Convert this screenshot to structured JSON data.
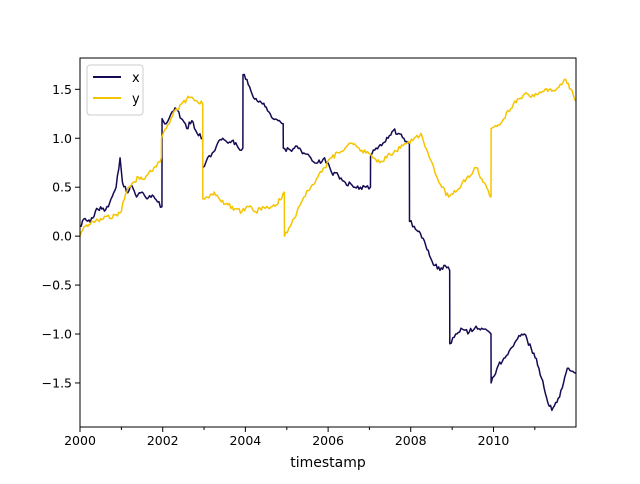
{
  "chart_data": {
    "type": "line",
    "title": "",
    "xlabel": "timestamp",
    "ylabel": "",
    "xlim": [
      "2000-01-01",
      "2011-12-31"
    ],
    "ylim": [
      -1.95,
      1.82
    ],
    "xticks": [
      {
        "date": "2000-01-01",
        "label": "2000"
      },
      {
        "date": "2002-01-01",
        "label": "2002"
      },
      {
        "date": "2004-01-01",
        "label": "2004"
      },
      {
        "date": "2006-01-01",
        "label": "2006"
      },
      {
        "date": "2008-01-01",
        "label": "2008"
      },
      {
        "date": "2010-01-01",
        "label": "2010"
      }
    ],
    "xminor_ticks": [
      "2001-01-01",
      "2003-01-01",
      "2005-01-01",
      "2007-01-01",
      "2009-01-01",
      "2011-01-01"
    ],
    "yticks": [
      {
        "value": 1.5,
        "label": "1.5"
      },
      {
        "value": 1.0,
        "label": "1.0"
      },
      {
        "value": 0.5,
        "label": "0.5"
      },
      {
        "value": 0.0,
        "label": "0.0"
      },
      {
        "value": -0.5,
        "label": "−0.5"
      },
      {
        "value": -1.0,
        "label": "−1.0"
      },
      {
        "value": -1.5,
        "label": "−1.5"
      }
    ],
    "grid": false,
    "legend": "upper-left",
    "series": [
      {
        "name": "x",
        "color": "#140b53",
        "points": [
          [
            "2000-01-01",
            0.1
          ],
          [
            "2000-02-15",
            0.18
          ],
          [
            "2000-04-01",
            0.14
          ],
          [
            "2000-05-15",
            0.25
          ],
          [
            "2000-07-01",
            0.3
          ],
          [
            "2000-08-15",
            0.27
          ],
          [
            "2000-10-01",
            0.38
          ],
          [
            "2000-11-15",
            0.5
          ],
          [
            "2000-12-20",
            0.8
          ],
          [
            "2001-01-10",
            0.55
          ],
          [
            "2001-02-15",
            0.45
          ],
          [
            "2001-04-01",
            0.52
          ],
          [
            "2001-05-15",
            0.4
          ],
          [
            "2001-07-01",
            0.45
          ],
          [
            "2001-08-15",
            0.38
          ],
          [
            "2001-10-01",
            0.42
          ],
          [
            "2001-11-15",
            0.35
          ],
          [
            "2001-12-25",
            0.3
          ],
          [
            "2001-12-26",
            1.2
          ],
          [
            "2002-02-01",
            1.15
          ],
          [
            "2002-03-15",
            1.25
          ],
          [
            "2002-05-01",
            1.3
          ],
          [
            "2002-06-15",
            1.2
          ],
          [
            "2002-08-01",
            1.1
          ],
          [
            "2002-09-15",
            1.18
          ],
          [
            "2002-11-01",
            1.05
          ],
          [
            "2002-12-20",
            1.0
          ],
          [
            "2002-12-21",
            0.7
          ],
          [
            "2003-02-01",
            0.8
          ],
          [
            "2003-03-15",
            0.85
          ],
          [
            "2003-05-01",
            0.95
          ],
          [
            "2003-06-15",
            1.0
          ],
          [
            "2003-08-01",
            0.95
          ],
          [
            "2003-09-15",
            0.98
          ],
          [
            "2003-11-01",
            0.9
          ],
          [
            "2003-12-10",
            0.9
          ],
          [
            "2003-12-11",
            1.65
          ],
          [
            "2004-01-15",
            1.6
          ],
          [
            "2004-03-01",
            1.45
          ],
          [
            "2004-04-15",
            1.38
          ],
          [
            "2004-06-01",
            1.35
          ],
          [
            "2004-07-15",
            1.28
          ],
          [
            "2004-09-01",
            1.2
          ],
          [
            "2004-10-15",
            1.18
          ],
          [
            "2004-11-30",
            1.15
          ],
          [
            "2004-12-01",
            0.9
          ],
          [
            "2005-02-01",
            0.88
          ],
          [
            "2005-04-01",
            0.92
          ],
          [
            "2005-06-01",
            0.85
          ],
          [
            "2005-08-01",
            0.8
          ],
          [
            "2005-10-01",
            0.75
          ],
          [
            "2005-12-01",
            0.8
          ],
          [
            "2006-02-01",
            0.65
          ],
          [
            "2006-04-01",
            0.62
          ],
          [
            "2006-06-01",
            0.55
          ],
          [
            "2006-08-01",
            0.52
          ],
          [
            "2006-10-01",
            0.48
          ],
          [
            "2006-12-01",
            0.5
          ],
          [
            "2007-01-10",
            0.5
          ],
          [
            "2007-01-11",
            0.82
          ],
          [
            "2007-03-01",
            0.9
          ],
          [
            "2007-05-01",
            0.95
          ],
          [
            "2007-06-15",
            1.0
          ],
          [
            "2007-08-01",
            1.08
          ],
          [
            "2007-09-15",
            1.05
          ],
          [
            "2007-11-01",
            1.0
          ],
          [
            "2007-12-20",
            0.95
          ],
          [
            "2007-12-21",
            0.15
          ],
          [
            "2008-02-01",
            0.1
          ],
          [
            "2008-03-15",
            0.05
          ],
          [
            "2008-05-01",
            -0.05
          ],
          [
            "2008-06-15",
            -0.2
          ],
          [
            "2008-08-01",
            -0.3
          ],
          [
            "2008-09-15",
            -0.35
          ],
          [
            "2008-11-01",
            -0.3
          ],
          [
            "2008-12-10",
            -0.35
          ],
          [
            "2008-12-11",
            -1.1
          ],
          [
            "2009-02-01",
            -1.0
          ],
          [
            "2009-04-01",
            -0.95
          ],
          [
            "2009-06-01",
            -0.98
          ],
          [
            "2009-08-01",
            -0.92
          ],
          [
            "2009-10-01",
            -0.95
          ],
          [
            "2009-12-10",
            -1.0
          ],
          [
            "2009-12-11",
            -1.5
          ],
          [
            "2010-02-01",
            -1.35
          ],
          [
            "2010-04-01",
            -1.25
          ],
          [
            "2010-06-01",
            -1.15
          ],
          [
            "2010-08-01",
            -1.05
          ],
          [
            "2010-10-01",
            -1.0
          ],
          [
            "2010-12-01",
            -1.15
          ],
          [
            "2011-01-15",
            -1.25
          ],
          [
            "2011-03-01",
            -1.45
          ],
          [
            "2011-04-15",
            -1.65
          ],
          [
            "2011-06-01",
            -1.78
          ],
          [
            "2011-07-15",
            -1.7
          ],
          [
            "2011-09-01",
            -1.55
          ],
          [
            "2011-10-15",
            -1.35
          ],
          [
            "2011-12-01",
            -1.38
          ],
          [
            "2011-12-31",
            -1.4
          ]
        ]
      },
      {
        "name": "y",
        "color": "#f5c400",
        "points": [
          [
            "2000-01-01",
            0.0
          ],
          [
            "2000-02-15",
            0.1
          ],
          [
            "2000-04-01",
            0.12
          ],
          [
            "2000-05-15",
            0.15
          ],
          [
            "2000-07-01",
            0.18
          ],
          [
            "2000-08-15",
            0.2
          ],
          [
            "2000-10-01",
            0.18
          ],
          [
            "2000-11-15",
            0.22
          ],
          [
            "2000-12-31",
            0.25
          ],
          [
            "2001-01-15",
            0.35
          ],
          [
            "2001-03-01",
            0.5
          ],
          [
            "2001-04-15",
            0.55
          ],
          [
            "2001-06-01",
            0.6
          ],
          [
            "2001-07-15",
            0.58
          ],
          [
            "2001-09-01",
            0.65
          ],
          [
            "2001-10-15",
            0.7
          ],
          [
            "2001-12-20",
            0.8
          ],
          [
            "2001-12-21",
            1.0
          ],
          [
            "2002-02-01",
            1.1
          ],
          [
            "2002-03-15",
            1.2
          ],
          [
            "2002-05-01",
            1.3
          ],
          [
            "2002-06-15",
            1.35
          ],
          [
            "2002-08-01",
            1.4
          ],
          [
            "2002-09-15",
            1.42
          ],
          [
            "2002-11-01",
            1.38
          ],
          [
            "2002-12-20",
            1.35
          ],
          [
            "2002-12-21",
            0.38
          ],
          [
            "2003-02-01",
            0.4
          ],
          [
            "2003-04-01",
            0.45
          ],
          [
            "2003-06-01",
            0.35
          ],
          [
            "2003-08-01",
            0.32
          ],
          [
            "2003-10-01",
            0.28
          ],
          [
            "2003-12-01",
            0.25
          ],
          [
            "2004-02-01",
            0.3
          ],
          [
            "2004-04-01",
            0.25
          ],
          [
            "2004-06-01",
            0.3
          ],
          [
            "2004-08-01",
            0.28
          ],
          [
            "2004-10-01",
            0.32
          ],
          [
            "2004-12-10",
            0.45
          ],
          [
            "2004-12-11",
            0.0
          ],
          [
            "2005-02-01",
            0.1
          ],
          [
            "2005-04-01",
            0.25
          ],
          [
            "2005-06-01",
            0.4
          ],
          [
            "2005-08-01",
            0.5
          ],
          [
            "2005-10-01",
            0.6
          ],
          [
            "2005-12-01",
            0.7
          ],
          [
            "2006-02-01",
            0.8
          ],
          [
            "2006-04-01",
            0.85
          ],
          [
            "2006-06-01",
            0.9
          ],
          [
            "2006-08-01",
            0.95
          ],
          [
            "2006-10-01",
            0.9
          ],
          [
            "2006-12-01",
            0.85
          ],
          [
            "2007-02-01",
            0.8
          ],
          [
            "2007-04-01",
            0.75
          ],
          [
            "2007-06-01",
            0.8
          ],
          [
            "2007-08-01",
            0.85
          ],
          [
            "2007-10-01",
            0.9
          ],
          [
            "2007-12-01",
            0.95
          ],
          [
            "2008-02-01",
            1.0
          ],
          [
            "2008-04-01",
            1.05
          ],
          [
            "2008-06-01",
            0.85
          ],
          [
            "2008-08-01",
            0.65
          ],
          [
            "2008-10-01",
            0.5
          ],
          [
            "2008-12-01",
            0.4
          ],
          [
            "2009-02-01",
            0.45
          ],
          [
            "2009-04-01",
            0.55
          ],
          [
            "2009-06-01",
            0.6
          ],
          [
            "2009-08-01",
            0.7
          ],
          [
            "2009-10-01",
            0.55
          ],
          [
            "2009-12-10",
            0.4
          ],
          [
            "2009-12-11",
            1.1
          ],
          [
            "2010-02-01",
            1.12
          ],
          [
            "2010-04-01",
            1.2
          ],
          [
            "2010-06-01",
            1.3
          ],
          [
            "2010-08-01",
            1.4
          ],
          [
            "2010-10-01",
            1.45
          ],
          [
            "2010-12-01",
            1.42
          ],
          [
            "2011-02-01",
            1.45
          ],
          [
            "2011-04-01",
            1.5
          ],
          [
            "2011-06-01",
            1.48
          ],
          [
            "2011-08-01",
            1.52
          ],
          [
            "2011-10-01",
            1.6
          ],
          [
            "2011-12-31",
            1.38
          ]
        ]
      }
    ]
  }
}
